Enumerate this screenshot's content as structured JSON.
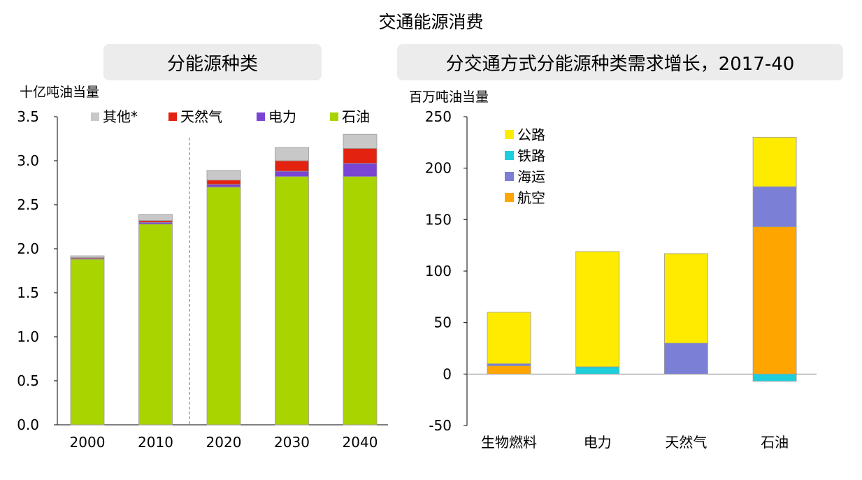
{
  "title": "交通能源消费",
  "left_panel": {
    "header": "分能源种类"
  },
  "right_panel": {
    "header": "分交通方式分能源种类需求增长，2017-40"
  },
  "colors": {
    "other": "#c8c8c8",
    "gas": "#e3230f",
    "electricity": "#7a45d4",
    "oil": "#a9d400",
    "road": "#ffeb00",
    "rail": "#1ecfdb",
    "marine": "#7b7fd6",
    "aviation": "#ffa500"
  },
  "chart_data": [
    {
      "type": "bar",
      "stacked": true,
      "title": "分能源种类",
      "ylabel": "十亿吨油当量",
      "ylim": [
        0,
        3.5
      ],
      "yticks": [
        "0.0",
        "0.5",
        "1.0",
        "1.5",
        "2.0",
        "2.5",
        "3.0",
        "3.5"
      ],
      "categories": [
        "2000",
        "2010",
        "2020",
        "2030",
        "2040"
      ],
      "projection_divider_after": "2010",
      "series": [
        {
          "name": "石油",
          "key": "oil",
          "values": [
            1.88,
            2.28,
            2.7,
            2.82,
            2.82
          ]
        },
        {
          "name": "电力",
          "key": "electricity",
          "values": [
            0.01,
            0.02,
            0.03,
            0.06,
            0.15
          ]
        },
        {
          "name": "天然气",
          "key": "gas",
          "values": [
            0.01,
            0.02,
            0.05,
            0.12,
            0.17
          ]
        },
        {
          "name": "其他*",
          "key": "other",
          "values": [
            0.02,
            0.07,
            0.11,
            0.15,
            0.16
          ]
        }
      ],
      "legend_order": [
        "其他*",
        "天然气",
        "电力",
        "石油"
      ],
      "legend_position": "top"
    },
    {
      "type": "bar",
      "stacked": true,
      "title": "分交通方式分能源种类需求增长，2017-40",
      "ylabel": "百万吨油当量",
      "ylim": [
        -50,
        250
      ],
      "yticks": [
        "-50",
        "0",
        "50",
        "100",
        "150",
        "200",
        "250"
      ],
      "categories": [
        "生物燃料",
        "电力",
        "天然气",
        "石油"
      ],
      "series": [
        {
          "name": "航空",
          "key": "aviation",
          "values": [
            8,
            0,
            0,
            143
          ]
        },
        {
          "name": "海运",
          "key": "marine",
          "values": [
            2,
            0,
            30,
            39
          ]
        },
        {
          "name": "铁路",
          "key": "rail",
          "values": [
            0,
            7,
            0,
            -7
          ]
        },
        {
          "name": "公路",
          "key": "road",
          "values": [
            50,
            112,
            87,
            48
          ]
        }
      ],
      "legend_order": [
        "公路",
        "铁路",
        "海运",
        "航空"
      ],
      "legend_position": "top-left"
    }
  ]
}
